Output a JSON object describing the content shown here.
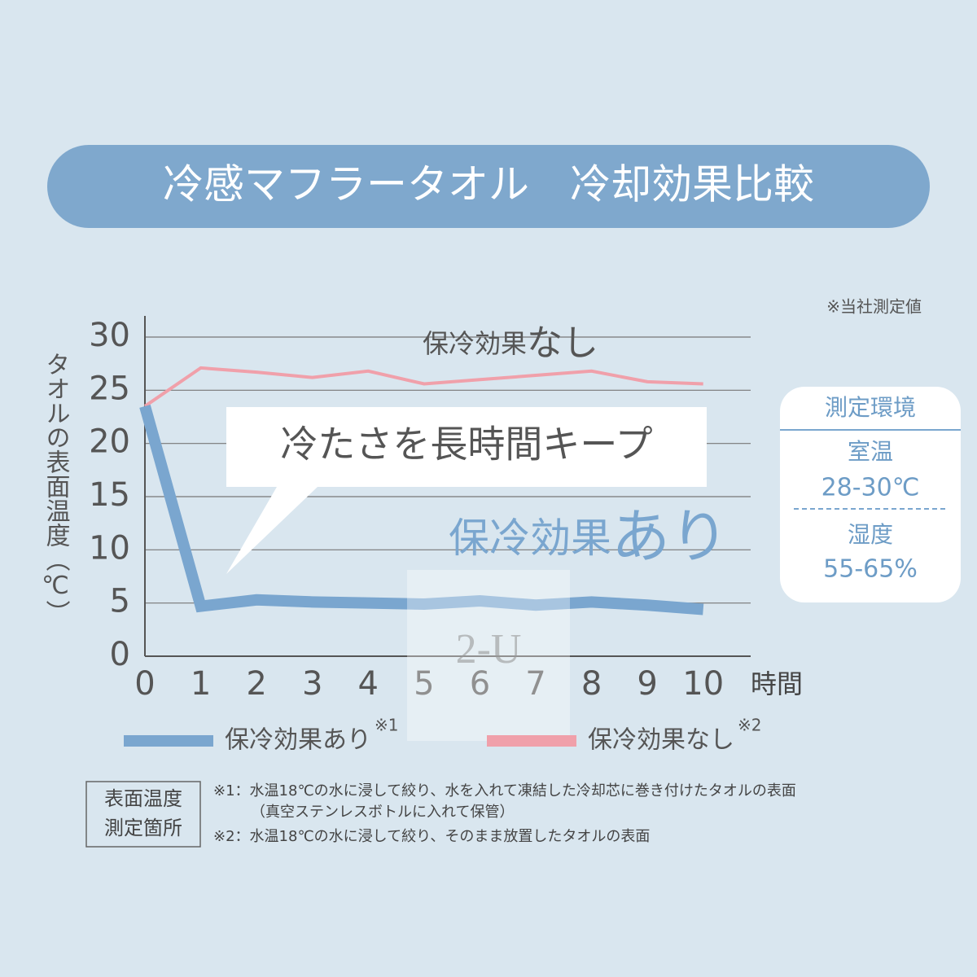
{
  "chart_data": {
    "type": "line",
    "title": "冷感マフラータオル　冷却効果比較",
    "source_note": "※当社測定値",
    "y_label": "タオルの表面温度（℃）",
    "x_label": "時間",
    "x": [
      0,
      1,
      2,
      3,
      4,
      5,
      6,
      7,
      8,
      9,
      10
    ],
    "xlim": [
      0,
      10.85
    ],
    "xticks": [
      0,
      1,
      2,
      3,
      4,
      5,
      6,
      7,
      8,
      9,
      10
    ],
    "ylim": [
      0,
      30
    ],
    "yticks": [
      0,
      5,
      10,
      15,
      20,
      25,
      30
    ],
    "grid": true,
    "series": [
      {
        "name": "保冷効果あり",
        "note": "※1",
        "color": "#7aa6cf",
        "width": 14,
        "values": [
          23.5,
          4.7,
          5.3,
          5.1,
          5.0,
          4.9,
          5.2,
          4.8,
          5.1,
          4.8,
          4.4
        ]
      },
      {
        "name": "保冷効果なし",
        "note": "※2",
        "color": "#f0a0aa",
        "width": 4,
        "values": [
          23.5,
          27.1,
          26.7,
          26.2,
          26.8,
          25.6,
          26.0,
          26.4,
          26.8,
          25.8,
          25.6
        ]
      }
    ],
    "annotation_without": [
      "保冷効果",
      "なし"
    ],
    "annotation_with": [
      "保冷効果",
      "あり"
    ],
    "callout": "冷たさを長時間キープ",
    "watermark": "2-U",
    "environment": {
      "title": "測定環境",
      "items": [
        {
          "label": "室温",
          "value": "28-30℃"
        },
        {
          "label": "湿度",
          "value": "55-65%"
        }
      ]
    },
    "footnote_box": [
      "表面温度",
      "測定箇所"
    ],
    "footnotes": [
      "※1：水温18℃の水に浸して絞り、水を入れて凍結した冷却芯に巻き付けたタオルの表面",
      "（真空ステンレスボトルに入れて保管）",
      "※2：水温18℃の水に浸して絞り、そのまま放置したタオルの表面"
    ]
  }
}
